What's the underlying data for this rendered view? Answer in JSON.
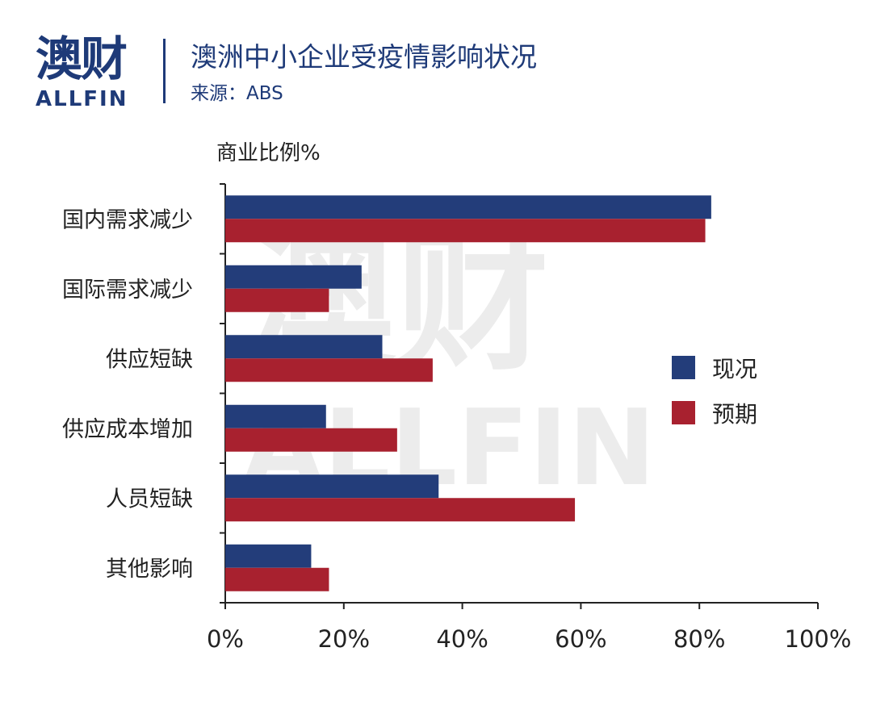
{
  "brand": {
    "cn": "澳财",
    "en": "ALLFIN"
  },
  "header": {
    "title": "澳洲中小企业受疫情影响状况",
    "source": "来源：ABS"
  },
  "colors": {
    "series_current": "#233d7a",
    "series_expected": "#a8212f",
    "brand": "#1e3a78"
  },
  "chart_data": {
    "type": "bar",
    "orientation": "horizontal",
    "title": "",
    "ylabel": "商业比例%",
    "categories": [
      "国内需求减少",
      "国际需求减少",
      "供应短缺",
      "供应成本增加",
      "人员短缺",
      "其他影响"
    ],
    "series": [
      {
        "name": "现况",
        "values": [
          82,
          23,
          26.5,
          17,
          36,
          14.5
        ]
      },
      {
        "name": "预期",
        "values": [
          81,
          17.5,
          35,
          29,
          59,
          17.5
        ]
      }
    ],
    "xlim": [
      0,
      100
    ],
    "xticks": [
      "0%",
      "20%",
      "40%",
      "60%",
      "80%",
      "100%"
    ],
    "legend_position": "right",
    "grid": false
  }
}
